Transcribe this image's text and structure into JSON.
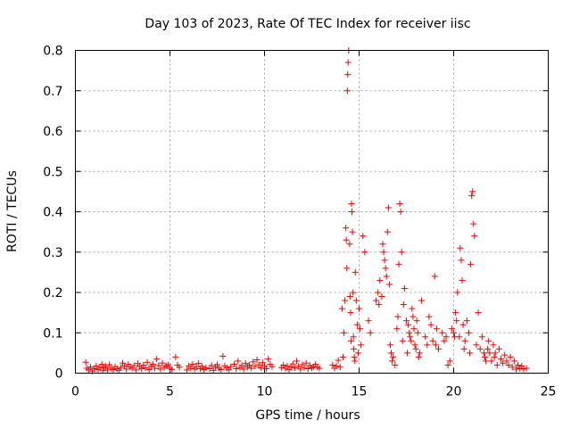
{
  "chart_data": {
    "type": "scatter",
    "title": "Day 103 of 2023, Rate Of TEC Index for receiver iisc",
    "xlabel": "GPS time / hours",
    "ylabel": "ROTI / TECUs",
    "xlim": [
      0,
      25
    ],
    "ylim": [
      0,
      0.8
    ],
    "xticks": [
      0,
      5,
      10,
      15,
      20,
      25
    ],
    "yticks": [
      0,
      0.1,
      0.2,
      0.3,
      0.4,
      0.5,
      0.6,
      0.7,
      0.8
    ],
    "grid": true,
    "marker": "+",
    "color": "#ee0000",
    "points": [
      [
        0.55,
        0.027
      ],
      [
        0.6,
        0.012
      ],
      [
        0.7,
        0.008
      ],
      [
        0.8,
        0.015
      ],
      [
        0.9,
        0.005
      ],
      [
        1.0,
        0.011
      ],
      [
        1.1,
        0.018
      ],
      [
        1.2,
        0.009
      ],
      [
        1.3,
        0.014
      ],
      [
        1.4,
        0.022
      ],
      [
        1.45,
        0.006
      ],
      [
        1.5,
        0.013
      ],
      [
        1.6,
        0.017
      ],
      [
        1.7,
        0.008
      ],
      [
        1.8,
        0.021
      ],
      [
        1.9,
        0.012
      ],
      [
        2.0,
        0.009
      ],
      [
        2.1,
        0.016
      ],
      [
        2.2,
        0.011
      ],
      [
        2.3,
        0.007
      ],
      [
        2.4,
        0.014
      ],
      [
        2.5,
        0.025
      ],
      [
        2.6,
        0.018
      ],
      [
        2.7,
        0.01
      ],
      [
        2.8,
        0.022
      ],
      [
        2.9,
        0.015
      ],
      [
        3.0,
        0.012
      ],
      [
        3.1,
        0.019
      ],
      [
        3.2,
        0.008
      ],
      [
        3.3,
        0.024
      ],
      [
        3.4,
        0.016
      ],
      [
        3.5,
        0.011
      ],
      [
        3.6,
        0.02
      ],
      [
        3.7,
        0.013
      ],
      [
        3.8,
        0.027
      ],
      [
        3.9,
        0.009
      ],
      [
        4.0,
        0.017
      ],
      [
        4.1,
        0.022
      ],
      [
        4.2,
        0.012
      ],
      [
        4.3,
        0.035
      ],
      [
        4.4,
        0.019
      ],
      [
        4.5,
        0.01
      ],
      [
        4.6,
        0.025
      ],
      [
        4.7,
        0.014
      ],
      [
        4.8,
        0.018
      ],
      [
        4.9,
        0.021
      ],
      [
        5.0,
        0.012
      ],
      [
        5.1,
        0.009
      ],
      [
        5.3,
        0.04
      ],
      [
        5.4,
        0.02
      ],
      [
        5.5,
        0.015
      ],
      [
        5.9,
        0.008
      ],
      [
        6.0,
        0.018
      ],
      [
        6.1,
        0.012
      ],
      [
        6.2,
        0.022
      ],
      [
        6.3,
        0.01
      ],
      [
        6.4,
        0.015
      ],
      [
        6.5,
        0.024
      ],
      [
        6.6,
        0.011
      ],
      [
        6.7,
        0.017
      ],
      [
        6.8,
        0.009
      ],
      [
        6.9,
        0.013
      ],
      [
        7.1,
        0.011
      ],
      [
        7.2,
        0.019
      ],
      [
        7.3,
        0.007
      ],
      [
        7.4,
        0.015
      ],
      [
        7.5,
        0.021
      ],
      [
        7.6,
        0.012
      ],
      [
        7.7,
        0.009
      ],
      [
        7.8,
        0.042
      ],
      [
        7.9,
        0.018
      ],
      [
        8.0,
        0.013
      ],
      [
        8.1,
        0.008
      ],
      [
        8.2,
        0.016
      ],
      [
        8.4,
        0.022
      ],
      [
        8.5,
        0.011
      ],
      [
        8.6,
        0.03
      ],
      [
        8.7,
        0.014
      ],
      [
        8.8,
        0.019
      ],
      [
        8.9,
        0.01
      ],
      [
        9.0,
        0.024
      ],
      [
        9.1,
        0.015
      ],
      [
        9.2,
        0.02
      ],
      [
        9.3,
        0.012
      ],
      [
        9.4,
        0.028
      ],
      [
        9.5,
        0.017
      ],
      [
        9.6,
        0.033
      ],
      [
        9.7,
        0.021
      ],
      [
        9.8,
        0.013
      ],
      [
        9.9,
        0.026
      ],
      [
        10.0,
        0.018
      ],
      [
        10.1,
        0.011
      ],
      [
        10.2,
        0.035
      ],
      [
        10.3,
        0.022
      ],
      [
        10.4,
        0.016
      ],
      [
        10.9,
        0.014
      ],
      [
        11.0,
        0.02
      ],
      [
        11.1,
        0.012
      ],
      [
        11.2,
        0.018
      ],
      [
        11.3,
        0.009
      ],
      [
        11.4,
        0.015
      ],
      [
        11.5,
        0.023
      ],
      [
        11.6,
        0.013
      ],
      [
        11.7,
        0.03
      ],
      [
        11.8,
        0.017
      ],
      [
        11.9,
        0.01
      ],
      [
        12.0,
        0.021
      ],
      [
        12.1,
        0.014
      ],
      [
        12.2,
        0.025
      ],
      [
        12.3,
        0.011
      ],
      [
        12.4,
        0.019
      ],
      [
        12.5,
        0.013
      ],
      [
        12.6,
        0.016
      ],
      [
        12.7,
        0.022
      ],
      [
        12.8,
        0.015
      ],
      [
        12.9,
        0.012
      ],
      [
        13.6,
        0.02
      ],
      [
        13.7,
        0.012
      ],
      [
        13.8,
        0.018
      ],
      [
        13.9,
        0.032
      ],
      [
        14.0,
        0.015
      ],
      [
        14.1,
        0.16
      ],
      [
        14.15,
        0.04
      ],
      [
        14.2,
        0.1
      ],
      [
        14.25,
        0.18
      ],
      [
        14.3,
        0.36
      ],
      [
        14.32,
        0.33
      ],
      [
        14.35,
        0.26
      ],
      [
        14.38,
        0.7
      ],
      [
        14.4,
        0.74
      ],
      [
        14.42,
        0.77
      ],
      [
        14.45,
        0.8
      ],
      [
        14.5,
        0.32
      ],
      [
        14.52,
        0.19
      ],
      [
        14.55,
        0.15
      ],
      [
        14.58,
        0.08
      ],
      [
        14.6,
        0.42
      ],
      [
        14.62,
        0.4
      ],
      [
        14.65,
        0.35
      ],
      [
        14.68,
        0.2
      ],
      [
        14.7,
        0.09
      ],
      [
        14.72,
        0.06
      ],
      [
        14.75,
        0.04
      ],
      [
        14.78,
        0.03
      ],
      [
        14.8,
        0.25
      ],
      [
        14.85,
        0.18
      ],
      [
        14.9,
        0.12
      ],
      [
        14.95,
        0.05
      ],
      [
        15.0,
        0.16
      ],
      [
        15.05,
        0.11
      ],
      [
        15.1,
        0.07
      ],
      [
        15.2,
        0.34
      ],
      [
        15.3,
        0.3
      ],
      [
        15.5,
        0.13
      ],
      [
        15.6,
        0.1
      ],
      [
        15.9,
        0.18
      ],
      [
        16.0,
        0.2
      ],
      [
        16.05,
        0.17
      ],
      [
        16.1,
        0.23
      ],
      [
        16.2,
        0.19
      ],
      [
        16.25,
        0.32
      ],
      [
        16.3,
        0.3
      ],
      [
        16.35,
        0.28
      ],
      [
        16.4,
        0.26
      ],
      [
        16.45,
        0.24
      ],
      [
        16.5,
        0.35
      ],
      [
        16.55,
        0.41
      ],
      [
        16.6,
        0.22
      ],
      [
        16.65,
        0.07
      ],
      [
        16.7,
        0.05
      ],
      [
        16.75,
        0.03
      ],
      [
        16.8,
        0.04
      ],
      [
        16.9,
        0.02
      ],
      [
        17.0,
        0.11
      ],
      [
        17.05,
        0.14
      ],
      [
        17.1,
        0.27
      ],
      [
        17.15,
        0.42
      ],
      [
        17.2,
        0.4
      ],
      [
        17.25,
        0.3
      ],
      [
        17.3,
        0.08
      ],
      [
        17.35,
        0.17
      ],
      [
        17.4,
        0.21
      ],
      [
        17.5,
        0.13
      ],
      [
        17.55,
        0.05
      ],
      [
        17.6,
        0.12
      ],
      [
        17.65,
        0.1
      ],
      [
        17.7,
        0.09
      ],
      [
        17.75,
        0.08
      ],
      [
        17.8,
        0.16
      ],
      [
        17.85,
        0.14
      ],
      [
        17.9,
        0.11
      ],
      [
        17.95,
        0.07
      ],
      [
        18.0,
        0.06
      ],
      [
        18.05,
        0.13
      ],
      [
        18.1,
        0.1
      ],
      [
        18.15,
        0.04
      ],
      [
        18.2,
        0.05
      ],
      [
        18.3,
        0.18
      ],
      [
        18.5,
        0.09
      ],
      [
        18.6,
        0.07
      ],
      [
        18.7,
        0.14
      ],
      [
        18.8,
        0.12
      ],
      [
        18.9,
        0.08
      ],
      [
        19.0,
        0.24
      ],
      [
        19.05,
        0.07
      ],
      [
        19.1,
        0.11
      ],
      [
        19.2,
        0.06
      ],
      [
        19.4,
        0.1
      ],
      [
        19.5,
        0.08
      ],
      [
        19.6,
        0.09
      ],
      [
        19.7,
        0.02
      ],
      [
        19.8,
        0.03
      ],
      [
        19.9,
        0.11
      ],
      [
        20.0,
        0.1
      ],
      [
        20.05,
        0.09
      ],
      [
        20.1,
        0.15
      ],
      [
        20.15,
        0.13
      ],
      [
        20.2,
        0.2
      ],
      [
        20.3,
        0.09
      ],
      [
        20.35,
        0.31
      ],
      [
        20.4,
        0.28
      ],
      [
        20.45,
        0.23
      ],
      [
        20.5,
        0.12
      ],
      [
        20.55,
        0.06
      ],
      [
        20.6,
        0.08
      ],
      [
        20.7,
        0.13
      ],
      [
        20.8,
        0.1
      ],
      [
        20.85,
        0.05
      ],
      [
        20.9,
        0.27
      ],
      [
        20.95,
        0.44
      ],
      [
        21.0,
        0.45
      ],
      [
        21.05,
        0.37
      ],
      [
        21.1,
        0.34
      ],
      [
        21.2,
        0.07
      ],
      [
        21.3,
        0.15
      ],
      [
        21.4,
        0.06
      ],
      [
        21.5,
        0.09
      ],
      [
        21.6,
        0.05
      ],
      [
        21.65,
        0.04
      ],
      [
        21.7,
        0.03
      ],
      [
        21.8,
        0.06
      ],
      [
        21.85,
        0.08
      ],
      [
        21.9,
        0.05
      ],
      [
        22.0,
        0.03
      ],
      [
        22.1,
        0.07
      ],
      [
        22.15,
        0.04
      ],
      [
        22.2,
        0.05
      ],
      [
        22.3,
        0.02
      ],
      [
        22.4,
        0.06
      ],
      [
        22.5,
        0.035
      ],
      [
        22.6,
        0.025
      ],
      [
        22.7,
        0.045
      ],
      [
        22.8,
        0.03
      ],
      [
        22.9,
        0.02
      ],
      [
        23.0,
        0.04
      ],
      [
        23.1,
        0.015
      ],
      [
        23.2,
        0.03
      ],
      [
        23.3,
        0.01
      ],
      [
        23.4,
        0.02
      ],
      [
        23.5,
        0.012
      ],
      [
        23.6,
        0.018
      ],
      [
        23.7,
        0.01
      ],
      [
        23.85,
        0.012
      ]
    ]
  }
}
